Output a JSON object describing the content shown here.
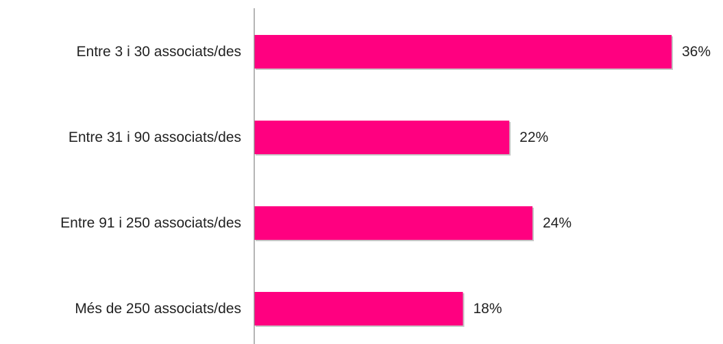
{
  "chart_data": {
    "type": "bar",
    "orientation": "horizontal",
    "categories": [
      "Entre 3 i 30 associats/des",
      "Entre 31 i 90 associats/des",
      "Entre 91 i 250 associats/des",
      "Més de 250 associats/des"
    ],
    "values": [
      36,
      22,
      24,
      18
    ],
    "value_labels": [
      "36%",
      "22%",
      "24%",
      "18%"
    ],
    "unit": "%",
    "xlim": [
      0,
      36
    ],
    "title": "",
    "xlabel": "",
    "ylabel": "",
    "grid": false,
    "legend": "none",
    "colors": {
      "bar": "#FF0080",
      "bar_shadow": "#b8b8b8",
      "axis": "#8c8c8c",
      "text": "#222222"
    }
  }
}
